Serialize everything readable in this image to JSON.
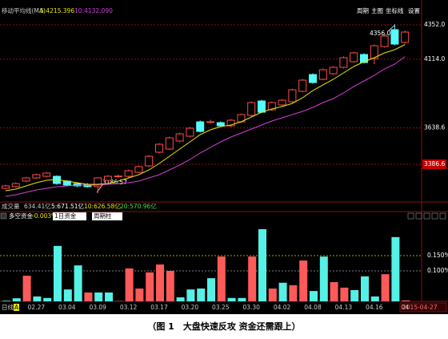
{
  "header": {
    "indicator": "移动平均线(MA)",
    "ma_labels": [
      "5:4215.396",
      "10:4132.090"
    ],
    "buttons": [
      "周期",
      "主图",
      "坐标线",
      "设置"
    ]
  },
  "price_labels": [
    "4356.00",
    "3186.57"
  ],
  "volume_header": {
    "title": "成交量",
    "value": "634.41亿",
    "mas": [
      "5:671.51亿",
      "10:626.58亿",
      "20:570.96亿"
    ]
  },
  "fund_header": {
    "title": "多空资金",
    "value": "-0.003%",
    "controls": [
      "1日资金",
      "周期柱"
    ]
  },
  "footer": {
    "period": "日线",
    "mode": "A",
    "date": "2015-04-27"
  },
  "caption": "（图 1　大盘快速反攻 资金还需跟上）",
  "chart_data": [
    {
      "type": "candlestick",
      "x": [
        null,
        null,
        null,
        "02.27",
        null,
        null,
        "03.04",
        null,
        null,
        "03.09",
        null,
        null,
        "03.12",
        null,
        null,
        "03.17",
        null,
        null,
        "03.20",
        null,
        null,
        "03.25",
        null,
        null,
        "03.30",
        null,
        null,
        "04.02",
        null,
        null,
        "04.08",
        null,
        null,
        "04.13",
        null,
        null,
        "04.16",
        null,
        null,
        "04"
      ],
      "open": [
        3220.2,
        3231.3,
        3270.1,
        3292.3,
        3303.4,
        3303.4,
        3270.1,
        3253.4,
        3247.9,
        3231.3,
        3275.6,
        3303.4,
        3303.4,
        3331.1,
        3375.5,
        3469.8,
        3492.0,
        3547.5,
        3580.8,
        3680.6,
        3680,
        3675.1,
        3652.9,
        3680.6,
        3725.0,
        3824.9,
        3763.9,
        3797.2,
        3819.3,
        3891.5,
        4008.0,
        3974.7,
        4013.5,
        4057.9,
        4096.7,
        4146.7,
        4118.9,
        4202.2,
        4318.7,
        4229.9
      ],
      "high": [
        3245,
        3262,
        3300,
        3322,
        3333,
        3310,
        3278,
        3262,
        3256,
        3298,
        3312,
        3315,
        3350,
        3378,
        3450,
        3533,
        3578,
        3606,
        3645,
        3690,
        3695,
        3684,
        3700,
        3738,
        3822,
        3834,
        3822,
        3838,
        3910,
        3978,
        4016,
        4050,
        4066,
        4133,
        4166,
        4155,
        4216,
        4285,
        4356.0,
        4312
      ],
      "low": [
        3212,
        3225,
        3262,
        3285,
        3296,
        3245,
        3236,
        3228,
        3225,
        3186.57,
        3268,
        3295,
        3296,
        3325,
        3368,
        3462,
        3485,
        3540,
        3573,
        3606,
        3668,
        3645,
        3645,
        3673,
        3718,
        3740,
        3756,
        3790,
        3812,
        3884,
        3945,
        3968,
        4006,
        4050,
        4090,
        4084,
        4080,
        4195,
        4210,
        4222
      ],
      "close": [
        3236.8,
        3253.4,
        3292.3,
        3314.5,
        3325.6,
        3253.4,
        3242.4,
        3236.8,
        3231.3,
        3292.3,
        3303.4,
        3305,
        3342.2,
        3370.0,
        3442.1,
        3525.3,
        3569.7,
        3597.4,
        3636.3,
        3614.1,
        3681,
        3652.9,
        3691.7,
        3730.6,
        3813.8,
        3747.2,
        3813.8,
        3830.4,
        3902.6,
        3969.1,
        3952.5,
        4041.3,
        4057.9,
        4124.5,
        4157.8,
        4091.2,
        4207.7,
        4274.3,
        4218.8,
        4302.0
      ],
      "up_color": "#ff4a4a",
      "down_color": "#54fcfc",
      "ma": [
        {
          "color": "#e6e600",
          "values": [
            3203.5,
            3214.6,
            3236.8,
            3259.0,
            3275.6,
            3281.2,
            3270.1,
            3259.0,
            3247.9,
            3247.9,
            3253.4,
            3270.1,
            3292.3,
            3314.5,
            3347.8,
            3392.1,
            3442.1,
            3492.0,
            3541.9,
            3591.9,
            3625.2,
            3647.4,
            3658.5,
            3680.6,
            3713.9,
            3747.2,
            3769.4,
            3786.1,
            3808.2,
            3847.1,
            3897.0,
            3935.9,
            3974.7,
            4019.1,
            4063.5,
            4096.7,
            4124.5,
            4157.8,
            4180.0,
            4215.396
          ]
        },
        {
          "color": "#d040d8",
          "values": [
            3164.7,
            3175.8,
            3192.4,
            3209.1,
            3220.2,
            3231.3,
            3236.8,
            3242.4,
            3242.4,
            3242.4,
            3247.9,
            3253.4,
            3259.0,
            3270.1,
            3292.3,
            3314.5,
            3347.8,
            3381.1,
            3419.9,
            3464.3,
            3503.1,
            3541.9,
            3575.2,
            3603.0,
            3630.7,
            3658.5,
            3686.2,
            3708.4,
            3730.6,
            3752.8,
            3780.5,
            3813.8,
            3841.5,
            3880.4,
            3924.8,
            3963.6,
            4002.4,
            4046.8,
            4080.1,
            4132.09
          ]
        }
      ],
      "ylim": [
        3136.9,
        4479.6
      ],
      "yticks": [
        {
          "value": 4352,
          "label": "4352.0"
        },
        {
          "value": 4114,
          "label": "4114.0"
        },
        3638.6,
        3386.6
      ],
      "grid": true
    },
    {
      "type": "bar",
      "values": [
        0.002,
        0.01,
        0.084,
        0.016,
        0.011,
        0.182,
        0.039,
        0.118,
        0.029,
        0.029,
        0.029,
        0.001,
        0.108,
        0.042,
        0.095,
        0.121,
        0.1,
        0.013,
        0.039,
        0.042,
        0.076,
        0.147,
        0.011,
        0.011,
        0.147,
        0.237,
        0.042,
        0.061,
        0.053,
        0.134,
        0.034,
        0.147,
        0.063,
        0.045,
        0.037,
        0.082,
        0.016,
        0.089,
        0.211,
        0.003
      ],
      "colors": [
        "#55f0e6",
        "#55f0e6",
        "#ff5a5a",
        "#55f0e6",
        "#55f0e6",
        "#55f0e6",
        "#55f0e6",
        "#55f0e6",
        "#ff5a5a",
        "#55f0e6",
        "#55f0e6",
        "#ff5a5a",
        "#ff5a5a",
        "#ff5a5a",
        "#ff5a5a",
        "#ff5a5a",
        "#ff5a5a",
        "#55f0e6",
        "#55f0e6",
        "#55f0e6",
        "#55f0e6",
        "#ff5a5a",
        "#55f0e6",
        "#55f0e6",
        "#ff5a5a",
        "#55f0e6",
        "#ff5a5a",
        "#55f0e6",
        "#ff5a5a",
        "#ff5a5a",
        "#55f0e6",
        "#55f0e6",
        "#ff5a5a",
        "#ff5a5a",
        "#55f0e6",
        "#55f0e6",
        "#55f0e6",
        "#ff5a5a",
        "#55f0e6",
        "#ff5a5a"
      ],
      "ylim": [
        0,
        0.2895
      ],
      "yticks": [
        {
          "value": 0.15,
          "label": "0.150%"
        },
        {
          "value": 0.1,
          "label": "0.100%"
        }
      ],
      "grid": true
    }
  ]
}
